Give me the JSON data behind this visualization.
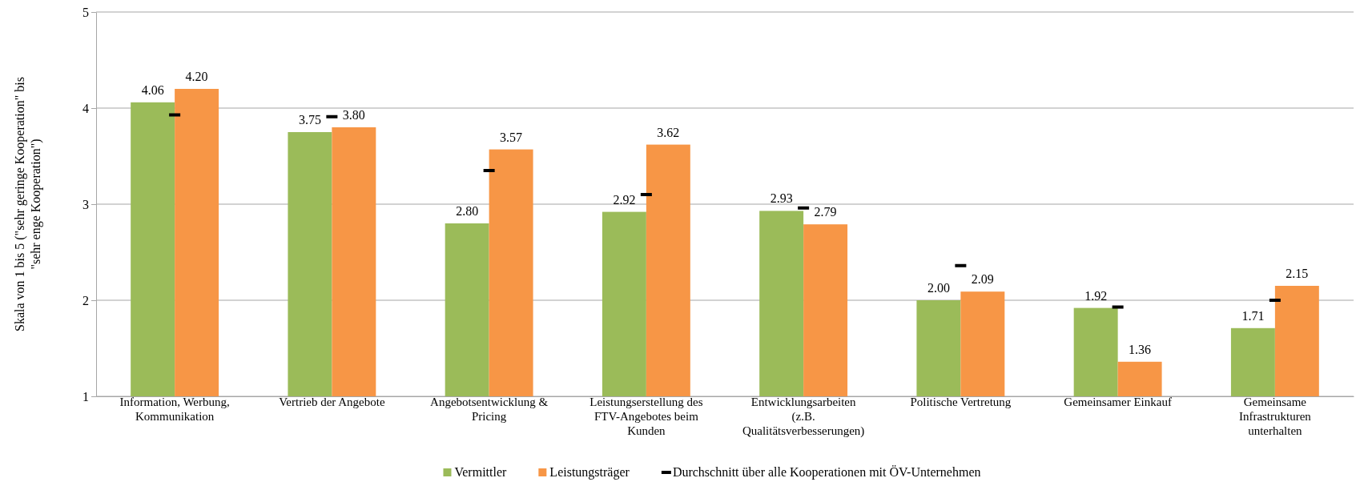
{
  "chart_data": {
    "type": "bar",
    "ylabel": "Skala von 1 bis 5 (\"sehr geringe Kooperation\" bis \"sehr enge Kooperation\")",
    "categories": [
      "Information, Werbung, Kommunikation",
      "Vertrieb der Angebote",
      "Angebotsentwicklung & Pricing",
      "Leistungserstellung des FTV-Angebotes beim Kunden",
      "Entwicklungsarbeiten (z.B. Qualitätsverbesserungen)",
      "Politische Vertretung",
      "Gemeinsamer Einkauf",
      "Gemeinsame Infrastrukturen unterhalten"
    ],
    "series": [
      {
        "name": "Vermittler",
        "color": "#9bbb59",
        "values": [
          4.06,
          3.75,
          2.8,
          2.92,
          2.93,
          2.0,
          1.92,
          1.71
        ],
        "value_labels": [
          "4.06",
          "3.75",
          "2.80",
          "2.92",
          "2.93",
          "2.00",
          "1.92",
          "1.71"
        ]
      },
      {
        "name": "Leistungsträger",
        "color": "#f79646",
        "values": [
          4.2,
          3.8,
          3.57,
          3.62,
          2.79,
          2.09,
          1.36,
          2.15
        ],
        "value_labels": [
          "4.20",
          "3.80",
          "3.57",
          "3.62",
          "2.79",
          "2.09",
          "1.36",
          "2.15"
        ]
      },
      {
        "name": "Durchschnitt über alle Kooperationen mit ÖV-Unternehmen",
        "type": "scatter",
        "color": "#000000",
        "x": [
          "Information, Werbung, Kommunikation",
          "Vertrieb der Angebote",
          "Angebotsentwicklung & Pricing",
          "Leistungserstellung des FTV-Angebotes beim Kunden",
          "Entwicklungsarbeiten (z.B. Qualitätsverbesserungen)",
          "Politische Vertretung",
          "Gemeinsamer Einkauf",
          "Gemeinsame Infrastrukturen unterhalten"
        ],
        "values": [
          3.93,
          3.91,
          3.35,
          3.1,
          2.96,
          2.36,
          1.93,
          2.0
        ]
      }
    ],
    "ylim": [
      1,
      5
    ],
    "yticks": [
      1,
      2,
      3,
      4,
      5
    ],
    "grid": "y",
    "legend": "bottom"
  }
}
